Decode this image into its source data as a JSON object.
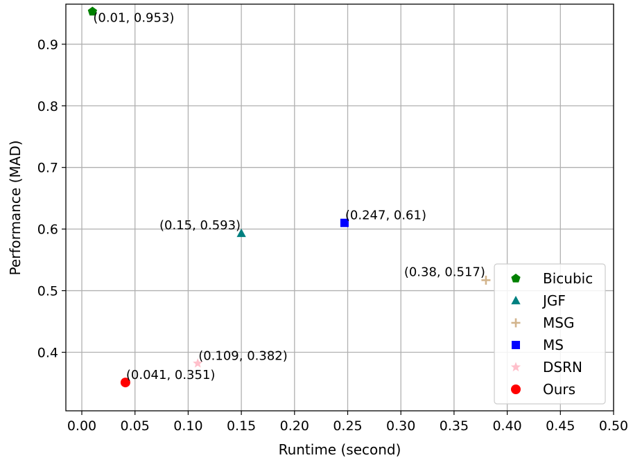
{
  "chart_data": {
    "type": "scatter",
    "title": "",
    "xlabel": "Runtime (second)",
    "ylabel": "Performance (MAD)",
    "xlim": [
      -0.015,
      0.5
    ],
    "ylim": [
      0.305,
      0.965
    ],
    "xticks": [
      0.0,
      0.05,
      0.1,
      0.15,
      0.2,
      0.25,
      0.3,
      0.35,
      0.4,
      0.45,
      0.5
    ],
    "xtick_labels": [
      "0.00",
      "0.05",
      "0.10",
      "0.15",
      "0.20",
      "0.25",
      "0.30",
      "0.35",
      "0.40",
      "0.45",
      "0.50"
    ],
    "yticks": [
      0.4,
      0.5,
      0.6,
      0.7,
      0.8,
      0.9
    ],
    "ytick_labels": [
      "0.4",
      "0.5",
      "0.6",
      "0.7",
      "0.8",
      "0.9"
    ],
    "grid": true,
    "legend_position": "lower-right",
    "series": [
      {
        "name": "Bicubic",
        "marker": "pentagon",
        "color": "#008000",
        "x": 0.01,
        "y": 0.953,
        "annotation": "(0.01, 0.953)",
        "annot_pos": "below-right"
      },
      {
        "name": "JGF",
        "marker": "triangle",
        "color": "#008080",
        "x": 0.15,
        "y": 0.593,
        "annotation": "(0.15, 0.593)",
        "annot_pos": "left"
      },
      {
        "name": "MSG",
        "marker": "plus",
        "color": "#d2b48c",
        "x": 0.38,
        "y": 0.517,
        "annotation": "(0.38, 0.517)",
        "annot_pos": "left"
      },
      {
        "name": "MS",
        "marker": "square",
        "color": "#0000ff",
        "x": 0.247,
        "y": 0.61,
        "annotation": "(0.247, 0.61)",
        "annot_pos": "above-right"
      },
      {
        "name": "DSRN",
        "marker": "star",
        "color": "#ffc0cb",
        "x": 0.109,
        "y": 0.382,
        "annotation": "(0.109, 0.382)",
        "annot_pos": "above-right"
      },
      {
        "name": "Ours",
        "marker": "circle",
        "color": "#ff0000",
        "x": 0.041,
        "y": 0.351,
        "annotation": "(0.041, 0.351)",
        "annot_pos": "above-right"
      }
    ]
  }
}
